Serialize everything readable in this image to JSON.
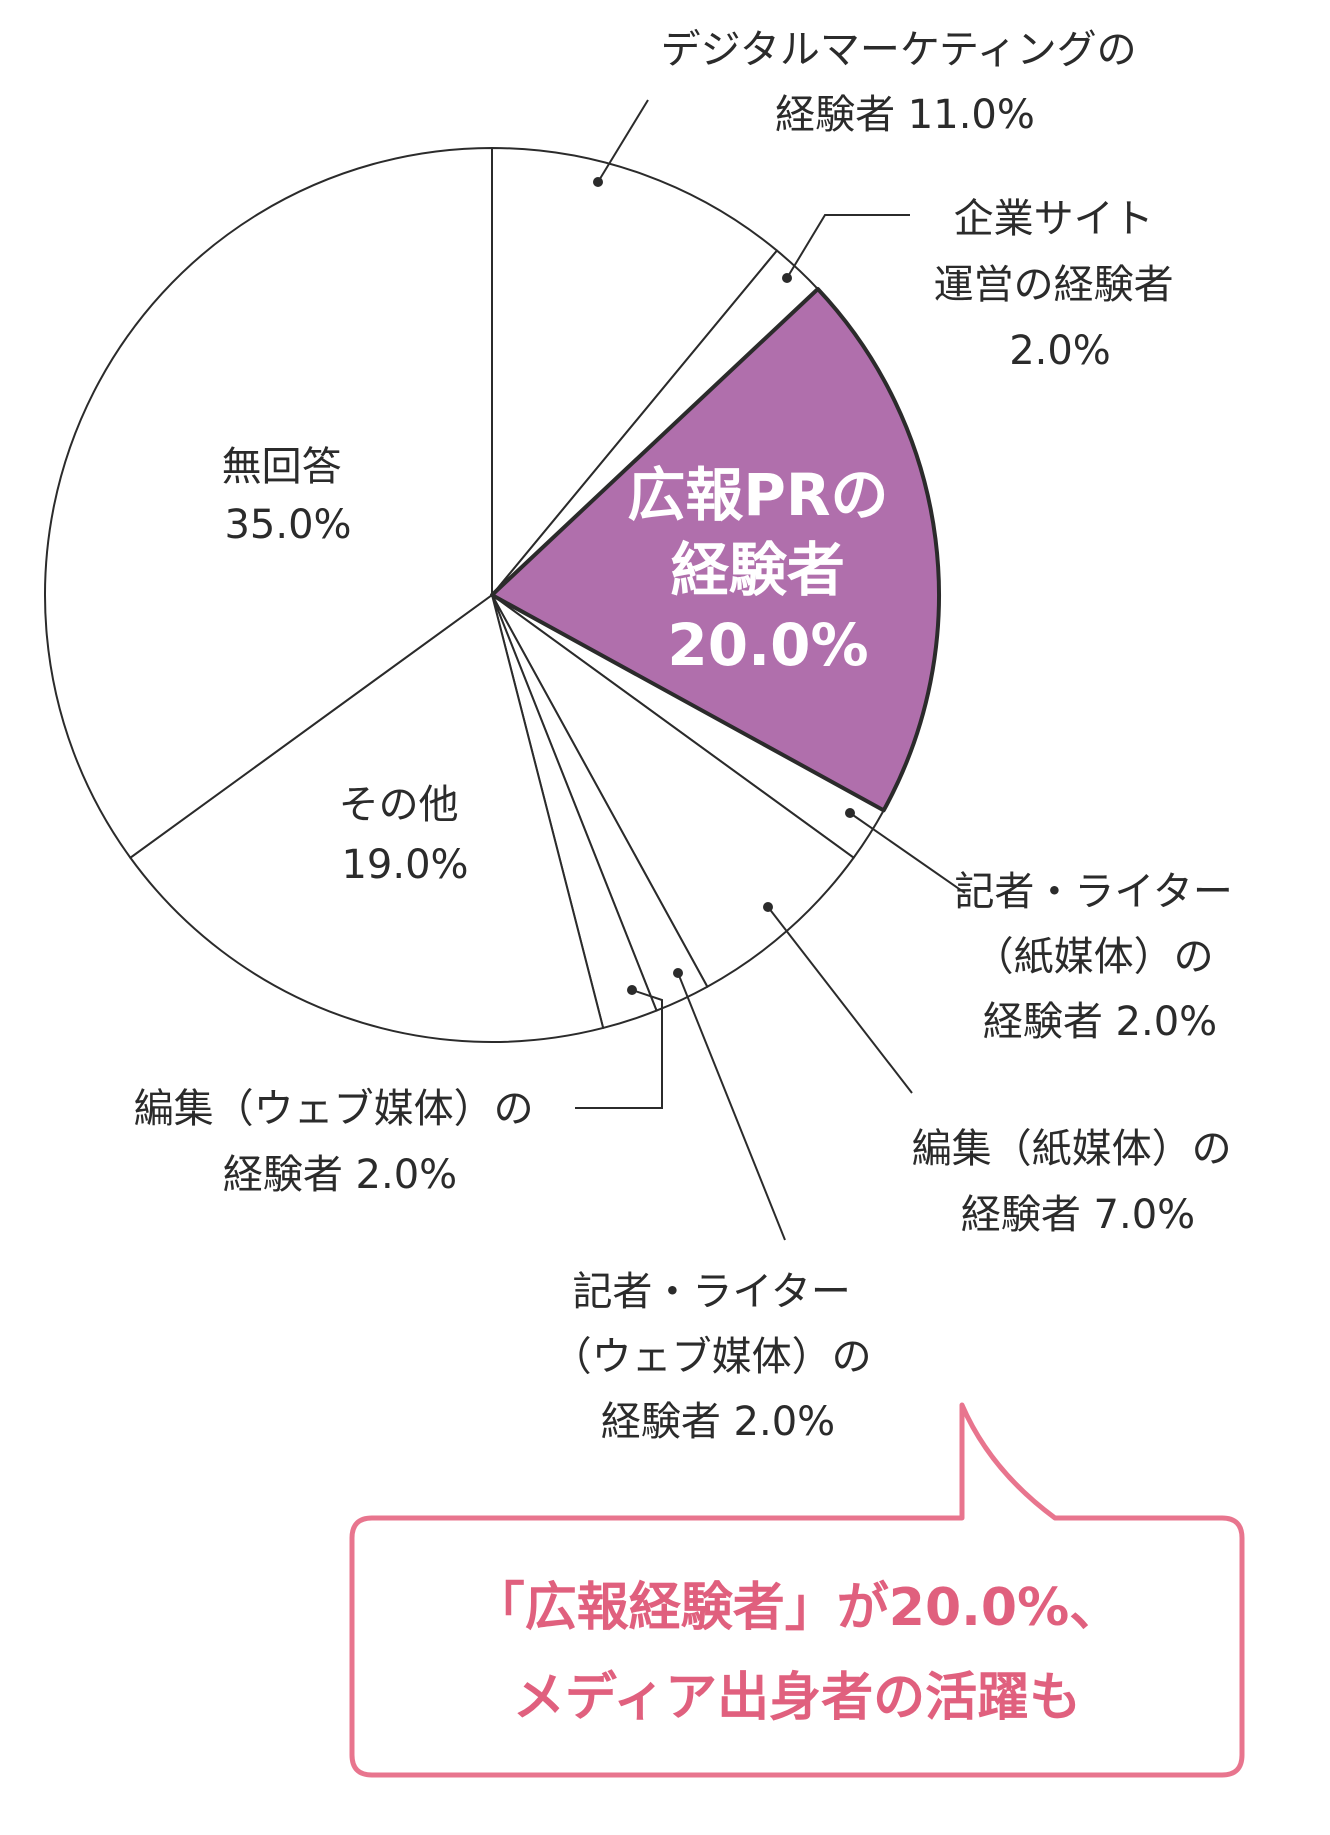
{
  "chart_data": {
    "type": "pie",
    "slices": [
      {
        "label": "デジタルマーケティングの経験者",
        "value": 11.0,
        "value_label": "11.0%"
      },
      {
        "label": "企業サイト運営の経験者",
        "value": 2.0,
        "value_label": "2.0%"
      },
      {
        "label": "広報PRの経験者",
        "value": 20.0,
        "value_label": "20.0%",
        "highlight": true
      },
      {
        "label": "記者・ライター（紙媒体）の経験者",
        "value": 2.0,
        "value_label": "2.0%"
      },
      {
        "label": "編集（紙媒体）の経験者",
        "value": 7.0,
        "value_label": "7.0%"
      },
      {
        "label": "記者・ライター（ウェブ媒体）の経験者",
        "value": 2.0,
        "value_label": "2.0%"
      },
      {
        "label": "編集（ウェブ媒体）の経験者",
        "value": 2.0,
        "value_label": "2.0%"
      },
      {
        "label": "その他",
        "value": 19.0,
        "value_label": "19.0%"
      },
      {
        "label": "無回答",
        "value": 35.0,
        "value_label": "35.0%"
      }
    ],
    "highlight_color": "#b06fac",
    "slice_color": "#ffffff",
    "callout": {
      "lines": [
        "「広報経験者」が20.0%、",
        "メディア出身者の活躍も"
      ],
      "border_color": "#e8758e",
      "text_color": "#e0607e"
    }
  },
  "labels": {
    "digital": [
      "デジタルマーケティングの",
      "経験者 11.0%"
    ],
    "site": [
      "企業サイト",
      "運営の経験者",
      "2.0%"
    ],
    "pr": [
      "広報PRの",
      "経験者",
      "20.0%"
    ],
    "reporter_paper": [
      "記者・ライター",
      "（紙媒体）の",
      "経験者 2.0%"
    ],
    "editor_paper": [
      "編集（紙媒体）の",
      "経験者 7.0%"
    ],
    "reporter_web": [
      "記者・ライター",
      "（ウェブ媒体）の",
      "経験者 2.0%"
    ],
    "editor_web": [
      "編集（ウェブ媒体）の",
      "経験者 2.0%"
    ],
    "other": [
      "その他",
      "19.0%"
    ],
    "none": [
      "無回答",
      "35.0%"
    ]
  }
}
